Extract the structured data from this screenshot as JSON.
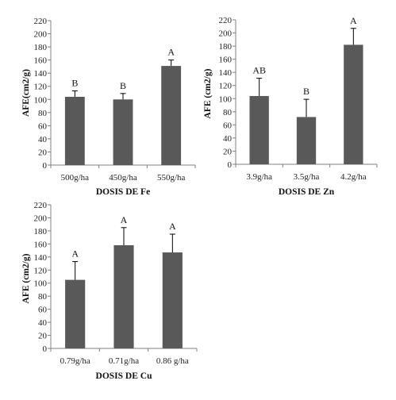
{
  "chart_data": [
    {
      "type": "bar",
      "xlabel": "DOSIS DE Fe",
      "ylabel": "AFE(cm2/g)",
      "ylim": [
        0,
        220
      ],
      "yticks": [
        0,
        20,
        40,
        60,
        80,
        100,
        120,
        140,
        160,
        180,
        200,
        220
      ],
      "categories": [
        "500g/ha",
        "450g/ha",
        "550g/ha"
      ],
      "values": [
        104,
        100,
        151
      ],
      "errors": [
        9,
        9,
        9
      ],
      "letters": [
        "B",
        "B",
        "A"
      ],
      "bar_color": "#595959",
      "grid": false
    },
    {
      "type": "bar",
      "xlabel": "DOSIS DE Zn",
      "ylabel": "AFE (cm2/g)",
      "ylim": [
        0,
        220
      ],
      "yticks": [
        0,
        20,
        40,
        60,
        80,
        100,
        120,
        140,
        160,
        180,
        200,
        220
      ],
      "categories": [
        "3.9g/ha",
        "3.5g/ha",
        "4.2g/ha"
      ],
      "values": [
        104,
        72,
        182
      ],
      "errors": [
        27,
        27,
        25
      ],
      "letters": [
        "AB",
        "B",
        "A"
      ],
      "bar_color": "#595959",
      "grid": false
    },
    {
      "type": "bar",
      "xlabel": "DOSIS DE Cu",
      "ylabel": "AFE (cm2/g)",
      "ylim": [
        0,
        220
      ],
      "yticks": [
        0,
        20,
        40,
        60,
        80,
        100,
        120,
        140,
        160,
        180,
        200,
        220
      ],
      "categories": [
        "0.79g/ha",
        "0.71g/ha",
        "0.86 g/ha"
      ],
      "values": [
        105,
        158,
        147
      ],
      "errors": [
        28,
        27,
        28
      ],
      "letters": [
        "A",
        "A",
        "A"
      ],
      "bar_color": "#595959",
      "grid": false
    }
  ]
}
